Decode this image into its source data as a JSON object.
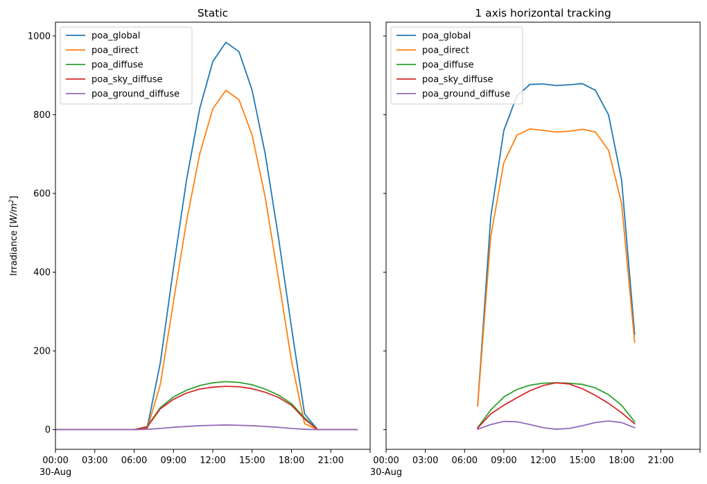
{
  "chart_data": [
    {
      "type": "line",
      "title": "Static",
      "ylabel": "Irradiance [W/m²]",
      "ylabel_parts": {
        "text": "Irradiance [",
        "unit_base": "W/m",
        "unit_sup": "2",
        "close": "]"
      },
      "x_unit": "hour of day",
      "xlim": [
        0,
        24
      ],
      "ylim": [
        -50,
        1035
      ],
      "x_tick_labels": [
        {
          "x": 0,
          "label": "00:00",
          "sublabel": "30-Aug"
        },
        {
          "x": 3,
          "label": "03:00"
        },
        {
          "x": 6,
          "label": "06:00"
        },
        {
          "x": 9,
          "label": "09:00"
        },
        {
          "x": 12,
          "label": "12:00"
        },
        {
          "x": 15,
          "label": "15:00"
        },
        {
          "x": 18,
          "label": "18:00"
        },
        {
          "x": 21,
          "label": "21:00"
        }
      ],
      "y_ticks": [
        0,
        200,
        400,
        600,
        800,
        1000
      ],
      "legend_position": "upper-left",
      "x": [
        0,
        1,
        2,
        3,
        4,
        5,
        6,
        7,
        8,
        9,
        10,
        11,
        12,
        13,
        14,
        15,
        16,
        17,
        18,
        19,
        20,
        21,
        22,
        23
      ],
      "series": [
        {
          "name": "poa_global",
          "color": "#1f77b4",
          "values": [
            0,
            0,
            0,
            0,
            0,
            0,
            0,
            5,
            170,
            410,
            635,
            815,
            935,
            984,
            960,
            862,
            700,
            490,
            260,
            40,
            0,
            0,
            0,
            0
          ]
        },
        {
          "name": "poa_direct",
          "color": "#ff7f0e",
          "values": [
            0,
            0,
            0,
            0,
            0,
            0,
            0,
            2,
            115,
            325,
            530,
            700,
            815,
            862,
            838,
            748,
            590,
            385,
            175,
            15,
            0,
            0,
            0,
            0
          ]
        },
        {
          "name": "poa_diffuse",
          "color": "#2ca02c",
          "values": [
            0,
            0,
            0,
            0,
            0,
            0,
            0,
            8,
            56,
            83,
            100,
            112,
            119,
            122,
            120,
            114,
            103,
            88,
            66,
            30,
            0,
            0,
            0,
            0
          ]
        },
        {
          "name": "poa_sky_diffuse",
          "color": "#d62728",
          "values": [
            0,
            0,
            0,
            0,
            0,
            0,
            0,
            7,
            53,
            77,
            93,
            103,
            108,
            110,
            109,
            104,
            95,
            82,
            62,
            27,
            0,
            0,
            0,
            0
          ]
        },
        {
          "name": "poa_ground_diffuse",
          "color": "#9467bd",
          "values": [
            0,
            0,
            0,
            0,
            0,
            0,
            0,
            1,
            3,
            6,
            8,
            10,
            11,
            12,
            11,
            10,
            8,
            6,
            3,
            1,
            0,
            0,
            0,
            0
          ]
        }
      ]
    },
    {
      "type": "line",
      "title": "1 axis horizontal tracking",
      "x_unit": "hour of day",
      "xlim": [
        0,
        24
      ],
      "ylim": [
        -50,
        1035
      ],
      "x_tick_labels": [
        {
          "x": 0,
          "label": "00:00",
          "sublabel": "30-Aug"
        },
        {
          "x": 3,
          "label": "03:00"
        },
        {
          "x": 6,
          "label": "06:00"
        },
        {
          "x": 9,
          "label": "09:00"
        },
        {
          "x": 12,
          "label": "12:00"
        },
        {
          "x": 15,
          "label": "15:00"
        },
        {
          "x": 18,
          "label": "18:00"
        },
        {
          "x": 21,
          "label": "21:00"
        }
      ],
      "y_ticks": [
        0,
        200,
        400,
        600,
        800,
        1000
      ],
      "y_tick_labels_visible": false,
      "legend_position": "upper-left",
      "x": [
        7,
        8,
        9,
        10,
        11,
        12,
        13,
        14,
        15,
        16,
        17,
        18,
        19
      ],
      "series": [
        {
          "name": "poa_global",
          "color": "#1f77b4",
          "values": [
            60,
            540,
            760,
            848,
            877,
            878,
            874,
            876,
            879,
            862,
            800,
            635,
            242
          ]
        },
        {
          "name": "poa_direct",
          "color": "#ff7f0e",
          "values": [
            60,
            490,
            678,
            748,
            764,
            760,
            756,
            758,
            763,
            756,
            710,
            575,
            222
          ]
        },
        {
          "name": "poa_diffuse",
          "color": "#2ca02c",
          "values": [
            5,
            50,
            83,
            102,
            113,
            118,
            119,
            118,
            115,
            106,
            89,
            62,
            20
          ]
        },
        {
          "name": "poa_sky_diffuse",
          "color": "#d62728",
          "values": [
            4,
            40,
            62,
            81,
            99,
            112,
            119,
            116,
            104,
            87,
            67,
            43,
            15
          ]
        },
        {
          "name": "poa_ground_diffuse",
          "color": "#9467bd",
          "values": [
            1,
            13,
            21,
            20,
            13,
            5,
            1,
            3,
            10,
            18,
            22,
            18,
            5
          ]
        }
      ]
    }
  ]
}
